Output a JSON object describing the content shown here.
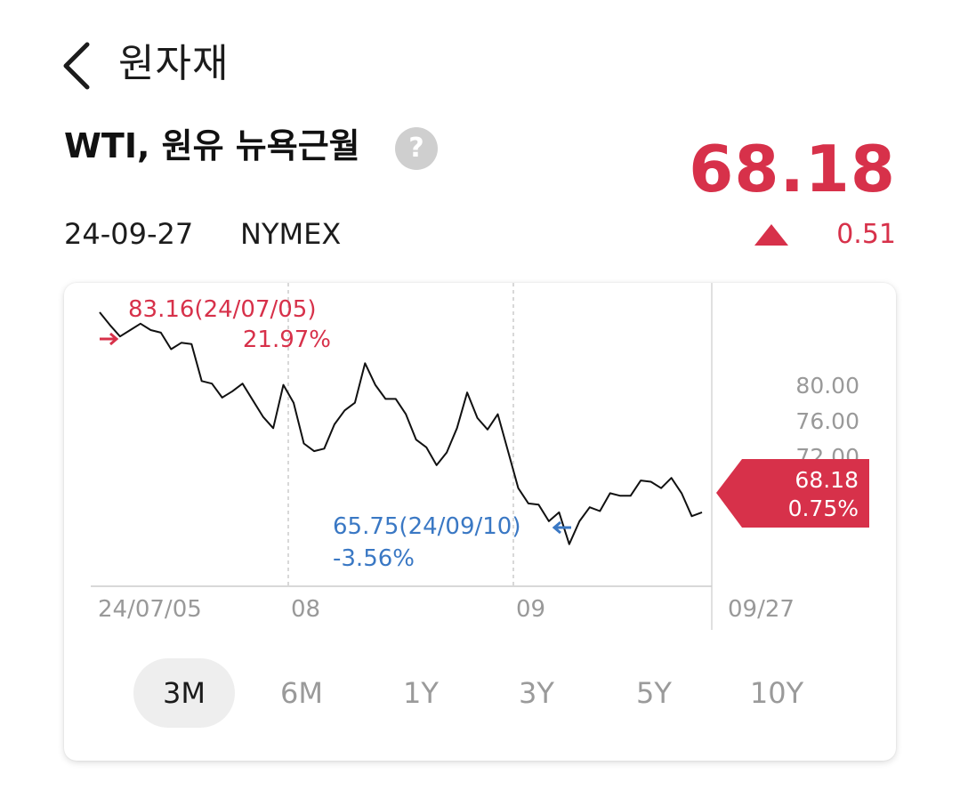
{
  "header": {
    "title": "원자재"
  },
  "instrument": {
    "name": "WTI, 원유 뉴욕근월",
    "help_label": "?",
    "price": "68.18",
    "date": "24-09-27",
    "exchange": "NYMEX",
    "change": "0.51",
    "direction": "up"
  },
  "colors": {
    "up": "#d7314a",
    "down": "#3a78c4",
    "line": "#111111",
    "grid": "#cccccc"
  },
  "chart": {
    "high_annotation": {
      "value_label": "83.16(24/07/05)",
      "pct_label": "21.97%"
    },
    "low_annotation": {
      "value_label": "65.75(24/09/10)",
      "pct_label": "-3.56%"
    },
    "current_tag": {
      "price": "68.18",
      "pct": "0.75%"
    },
    "x_tick_labels": [
      "24/07/05",
      "08",
      "09",
      "09/27"
    ],
    "y_tick_labels": [
      "80.00",
      "76.00",
      "72.00"
    ]
  },
  "chart_data": {
    "type": "line",
    "title": "",
    "xlabel": "",
    "ylabel": "",
    "ylim": [
      62.5,
      86.3
    ],
    "y_ticks": [
      80,
      76,
      72
    ],
    "x_ticks": [
      "24/07/05",
      "08",
      "09",
      "09/27"
    ],
    "grid": true,
    "legend": "none",
    "series": [
      {
        "values": [
          84.0,
          83.0,
          82.1,
          82.6,
          83.1,
          82.6,
          82.4,
          81.1,
          81.6,
          81.5,
          78.6,
          78.4,
          77.3,
          77.8,
          78.4,
          77.1,
          75.8,
          74.9,
          78.3,
          76.9,
          73.7,
          73.1,
          73.3,
          75.2,
          76.3,
          76.9,
          80.0,
          78.3,
          77.2,
          77.2,
          76.0,
          74.0,
          73.4,
          72.0,
          73.0,
          74.9,
          77.7,
          75.7,
          74.8,
          76.0,
          73.1,
          70.2,
          69.0,
          68.9,
          67.6,
          68.3,
          65.8,
          67.6,
          68.7,
          68.4,
          69.8,
          69.6,
          69.6,
          70.8,
          70.7,
          70.2,
          71.0,
          69.8,
          68.0,
          68.3
        ]
      }
    ]
  }
}
